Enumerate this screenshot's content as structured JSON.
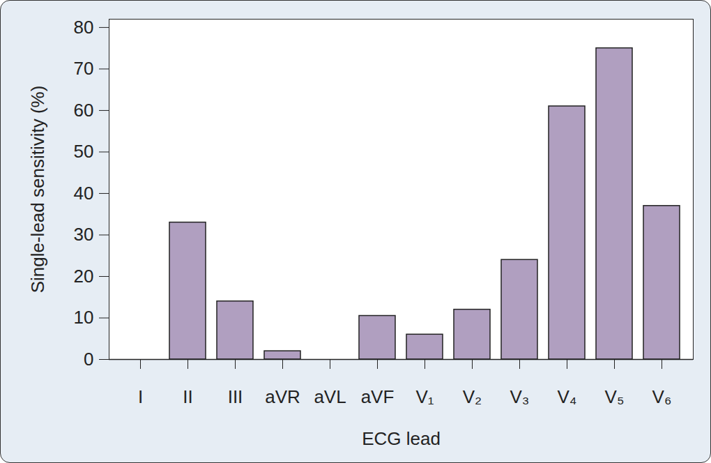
{
  "chart_data": {
    "type": "bar",
    "x_label": "ECG lead",
    "y_label": "Single-lead sensitivity (%)",
    "categories": [
      "I",
      "II",
      "III",
      "aVR",
      "aVL",
      "aVF",
      "V₁",
      "V₂",
      "V₃",
      "V₄",
      "V₅",
      "V₆"
    ],
    "values": [
      0,
      33,
      14,
      2,
      0,
      10.5,
      6,
      12,
      24,
      61,
      75,
      37
    ],
    "color": "#b09fc0",
    "ylim": [
      0,
      82
    ],
    "yticks": [
      0,
      10,
      20,
      30,
      40,
      50,
      60,
      70,
      80
    ],
    "grid": false
  }
}
